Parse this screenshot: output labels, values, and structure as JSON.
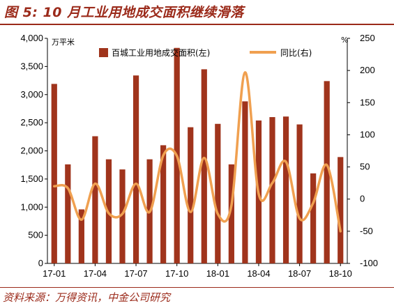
{
  "title": "图 5: 10 月工业用地成交面积继续滑落",
  "source": "资料来源：万得资讯，中金公司研究",
  "chart_data": {
    "type": "bar+line",
    "left_unit": "万平米",
    "right_unit": "%",
    "x": [
      "17-01",
      "17-02",
      "17-03",
      "17-04",
      "17-05",
      "17-06",
      "17-07",
      "17-08",
      "17-09",
      "17-10",
      "17-11",
      "17-12",
      "18-01",
      "18-02",
      "18-03",
      "18-04",
      "18-05",
      "18-06",
      "18-07",
      "18-08",
      "18-09",
      "18-10"
    ],
    "x_tick_labels": [
      "17-01",
      "17-04",
      "17-07",
      "17-10",
      "18-01",
      "18-04",
      "18-07",
      "18-10"
    ],
    "series": [
      {
        "name": "百城工业用地成交面积(左)",
        "type": "bar",
        "axis": "left",
        "color": "#a0341c",
        "values": [
          3190,
          1760,
          960,
          2260,
          1850,
          1670,
          3340,
          1850,
          2100,
          3830,
          2420,
          3450,
          2480,
          1760,
          2880,
          2540,
          2600,
          2610,
          2470,
          1600,
          3240,
          1890
        ]
      },
      {
        "name": "同比(右)",
        "type": "line",
        "axis": "right",
        "color": "#f0a050",
        "values": [
          20,
          17,
          -32,
          24,
          -22,
          -23,
          24,
          -20,
          68,
          67,
          -20,
          64,
          -23,
          -10,
          197,
          8,
          25,
          58,
          -30,
          -6,
          53,
          -50
        ]
      }
    ],
    "ylim_left": [
      0,
      4000
    ],
    "yticks_left": [
      "0",
      "500",
      "1,000",
      "1,500",
      "2,000",
      "2,500",
      "3,000",
      "3,500",
      "4,000"
    ],
    "ylim_right": [
      -100,
      250
    ],
    "yticks_right": [
      "-100",
      "-50",
      "0",
      "50",
      "100",
      "150",
      "200",
      "250"
    ],
    "legend": "top"
  }
}
